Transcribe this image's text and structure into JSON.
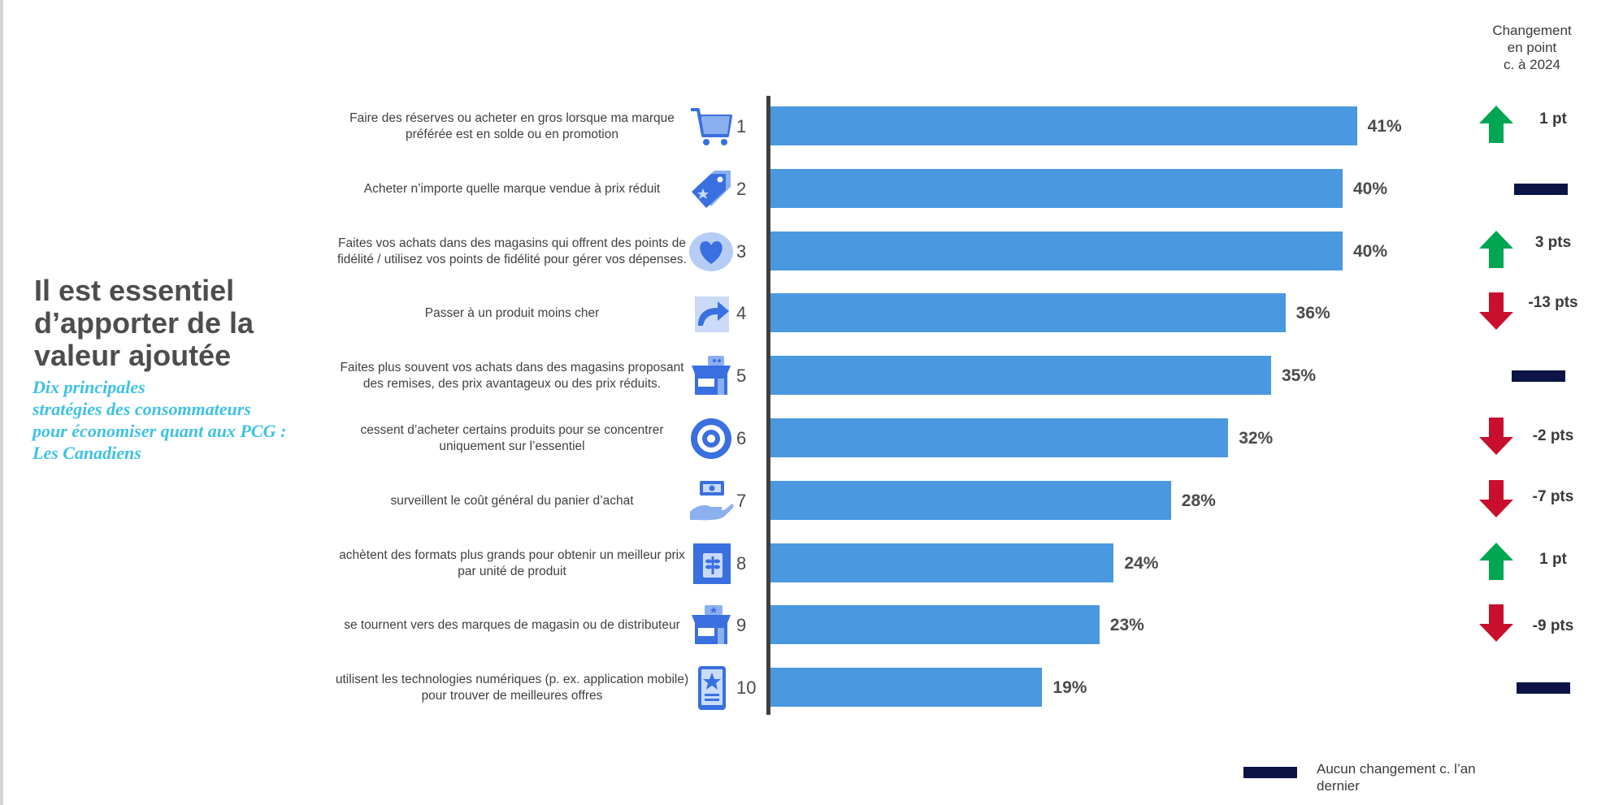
{
  "headline": "Il est essentiel d’apporter de la valeur ajoutée",
  "subtitle": [
    "Dix principales",
    "stratégies des consommateurs",
    "pour économiser quant aux PCG :",
    "Les Canadiens"
  ],
  "change_header": [
    "Changement",
    "en point",
    "c. à 2024"
  ],
  "legend": {
    "no_change_label": "Aucun changement c. l’an dernier"
  },
  "colors": {
    "bar": "#4a98e0",
    "up": "#00a651",
    "down": "#c8102e",
    "no_change": "#0c1346",
    "icon": "#3a6fe0"
  },
  "chart_data": {
    "type": "bar",
    "orientation": "horizontal",
    "xlim": [
      0,
      100
    ],
    "items": [
      {
        "rank": "1",
        "label": "Faire des réserves ou acheter en gros lorsque ma marque préférée est en solde ou en promotion",
        "value": 41,
        "value_label": "41%",
        "icon": "shopping-cart-icon",
        "change": {
          "direction": "up",
          "label": "1 pt"
        }
      },
      {
        "rank": "2",
        "label": "Acheter n’importe quelle marque vendue à prix réduit",
        "value": 40,
        "value_label": "40%",
        "icon": "price-tag-icon",
        "change": {
          "direction": "none",
          "label": ""
        }
      },
      {
        "rank": "3",
        "label": "Faites vos achats dans des magasins qui offrent des points de fidélité / utilisez vos points de fidélité pour gérer vos dépenses.",
        "value": 40,
        "value_label": "40%",
        "icon": "heart-icon",
        "change": {
          "direction": "up",
          "label": "3 pts"
        }
      },
      {
        "rank": "4",
        "label": "Passer à un produit moins cher",
        "value": 36,
        "value_label": "36%",
        "icon": "switch-arrow-icon",
        "change": {
          "direction": "down",
          "label": "-13 pts"
        }
      },
      {
        "rank": "5",
        "label": "Faites plus souvent vos achats dans des magasins proposant des remises, des prix avantageux ou des prix réduits.",
        "value": 35,
        "value_label": "35%",
        "icon": "store-icon",
        "change": {
          "direction": "none",
          "label": ""
        }
      },
      {
        "rank": "6",
        "label": "cessent d’acheter certains produits pour se concentrer uniquement sur l’essentiel",
        "value": 32,
        "value_label": "32%",
        "icon": "target-icon",
        "change": {
          "direction": "down",
          "label": "-2 pts"
        }
      },
      {
        "rank": "7",
        "label": "surveillent le coût général du panier d’achat",
        "value": 28,
        "value_label": "28%",
        "icon": "hand-money-icon",
        "change": {
          "direction": "down",
          "label": "-7 pts"
        }
      },
      {
        "rank": "8",
        "label": "achètent des formats plus grands pour obtenir un meilleur prix par unité de produit",
        "value": 24,
        "value_label": "24%",
        "icon": "package-icon",
        "change": {
          "direction": "up",
          "label": "1 pt"
        }
      },
      {
        "rank": "9",
        "label": "se tournent vers des marques de magasin ou de distributeur",
        "value": 23,
        "value_label": "23%",
        "icon": "store-brand-icon",
        "change": {
          "direction": "down",
          "label": "-9 pts"
        }
      },
      {
        "rank": "10",
        "label": "utilisent les technologies numériques (p. ex. application mobile) pour trouver de meilleures offres",
        "value": 19,
        "value_label": "19%",
        "icon": "mobile-app-icon",
        "change": {
          "direction": "none",
          "label": ""
        }
      }
    ]
  }
}
